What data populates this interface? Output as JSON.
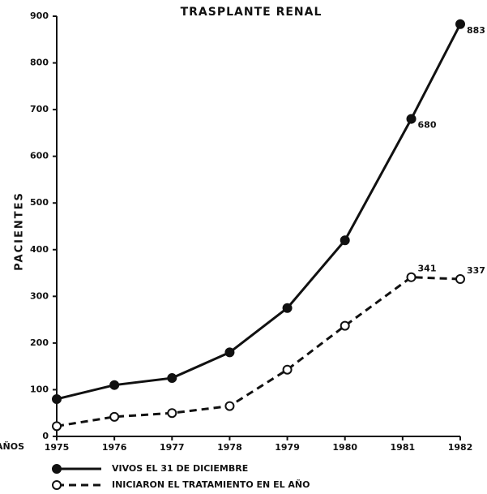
{
  "chart_data": {
    "type": "line",
    "title": "TRASPLANTE RENAL",
    "y_label": "PACIENTES",
    "x_label": "AÑOS",
    "x": [
      1975,
      1976,
      1977,
      1978,
      1979,
      1980,
      1981.15,
      1982
    ],
    "xlim": [
      1975,
      1982
    ],
    "xticks": [
      1975,
      1976,
      1977,
      1978,
      1979,
      1980,
      1981,
      1982
    ],
    "ylim": [
      0,
      900
    ],
    "yticks": [
      0,
      100,
      200,
      300,
      400,
      500,
      600,
      700,
      800,
      900
    ],
    "series": [
      {
        "name": "VIVOS EL 31 DE DICIEMBRE",
        "color": "#111111",
        "style": "solid",
        "values": [
          80,
          110,
          125,
          180,
          275,
          420,
          680,
          883
        ],
        "value_labels": [
          null,
          null,
          null,
          null,
          null,
          null,
          "680",
          "883"
        ]
      },
      {
        "name": "INICIARON EL TRATAMIENTO EN EL AÑO",
        "color": "#111111",
        "style": "dashed",
        "values": [
          22,
          42,
          50,
          65,
          143,
          237,
          341,
          337
        ],
        "value_labels": [
          null,
          null,
          null,
          null,
          null,
          null,
          "341",
          "337"
        ]
      }
    ]
  }
}
